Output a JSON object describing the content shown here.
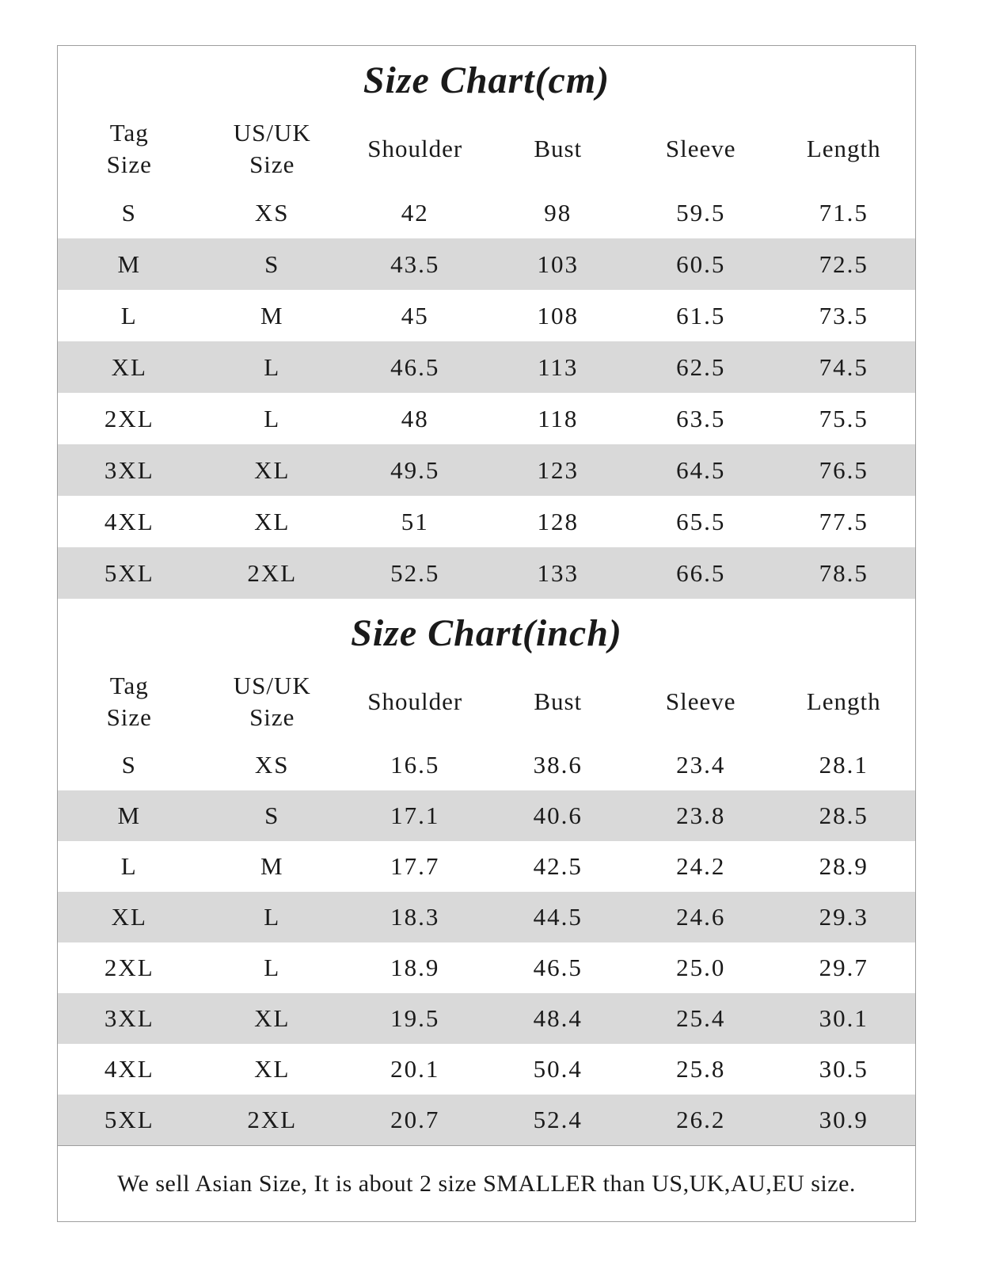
{
  "tables": [
    {
      "id": "cm",
      "title": "Size Chart(cm)",
      "headers": [
        "Tag\nSize",
        "US/UK\nSize",
        "Shoulder",
        "Bust",
        "Sleeve",
        "Length"
      ],
      "rows": [
        [
          "S",
          "XS",
          "42",
          "98",
          "59.5",
          "71.5"
        ],
        [
          "M",
          "S",
          "43.5",
          "103",
          "60.5",
          "72.5"
        ],
        [
          "L",
          "M",
          "45",
          "108",
          "61.5",
          "73.5"
        ],
        [
          "XL",
          "L",
          "46.5",
          "113",
          "62.5",
          "74.5"
        ],
        [
          "2XL",
          "L",
          "48",
          "118",
          "63.5",
          "75.5"
        ],
        [
          "3XL",
          "XL",
          "49.5",
          "123",
          "64.5",
          "76.5"
        ],
        [
          "4XL",
          "XL",
          "51",
          "128",
          "65.5",
          "77.5"
        ],
        [
          "5XL",
          "2XL",
          "52.5",
          "133",
          "66.5",
          "78.5"
        ]
      ]
    },
    {
      "id": "inch",
      "title": "Size Chart(inch)",
      "headers": [
        "Tag\nSize",
        "US/UK\nSize",
        "Shoulder",
        "Bust",
        "Sleeve",
        "Length"
      ],
      "rows": [
        [
          "S",
          "XS",
          "16.5",
          "38.6",
          "23.4",
          "28.1"
        ],
        [
          "M",
          "S",
          "17.1",
          "40.6",
          "23.8",
          "28.5"
        ],
        [
          "L",
          "M",
          "17.7",
          "42.5",
          "24.2",
          "28.9"
        ],
        [
          "XL",
          "L",
          "18.3",
          "44.5",
          "24.6",
          "29.3"
        ],
        [
          "2XL",
          "L",
          "18.9",
          "46.5",
          "25.0",
          "29.7"
        ],
        [
          "3XL",
          "XL",
          "19.5",
          "48.4",
          "25.4",
          "30.1"
        ],
        [
          "4XL",
          "XL",
          "20.1",
          "50.4",
          "25.8",
          "30.5"
        ],
        [
          "5XL",
          "2XL",
          "20.7",
          "52.4",
          "26.2",
          "30.9"
        ]
      ]
    }
  ],
  "footer": {
    "note": "We sell Asian Size, It is about 2 size SMALLER than US,UK,AU,EU size."
  },
  "colors": {
    "stripe": "#d9d9d9",
    "border": "#9e9e9e",
    "text": "#1a1a1a",
    "background": "#ffffff"
  }
}
